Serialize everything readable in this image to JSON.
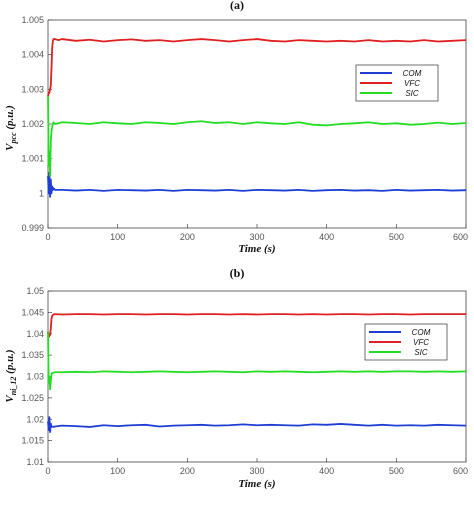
{
  "chart_data": [
    {
      "type": "line",
      "panel_label": "(a)",
      "title": "",
      "xlabel": "Time (s)",
      "ylabel_main": "V",
      "ylabel_sub": "pcc",
      "ylabel_unit": " (p.u.)",
      "xlim": [
        0,
        600
      ],
      "ylim": [
        0.999,
        1.005
      ],
      "xticks": [
        0,
        100,
        200,
        300,
        400,
        500,
        600
      ],
      "xtick_labels": [
        "0",
        "100",
        "200",
        "300",
        "400",
        "500",
        "600"
      ],
      "yticks": [
        0.999,
        1.0,
        1.001,
        1.002,
        1.003,
        1.004,
        1.005
      ],
      "ytick_labels": [
        "0.999",
        "1",
        "1.001",
        "1.002",
        "1.003",
        "1.004",
        "1.005"
      ],
      "legend_position": "right",
      "series": [
        {
          "name": "COM",
          "color": "#1f3fd4",
          "x": [
            0,
            1,
            2,
            3,
            4,
            5,
            6,
            7,
            8,
            10,
            15,
            20,
            40,
            60,
            80,
            100,
            120,
            140,
            160,
            180,
            200,
            220,
            240,
            260,
            280,
            300,
            320,
            340,
            360,
            380,
            400,
            420,
            440,
            460,
            480,
            500,
            520,
            540,
            560,
            580,
            600
          ],
          "y": [
            1.0005,
            1.0,
            1.0006,
            0.9999,
            1.0004,
            1.0,
            1.0002,
            1.0001,
            1.00015,
            1.0001,
            1.0001,
            1.0001,
            1.00008,
            1.0001,
            1.00007,
            1.0001,
            1.00009,
            1.00008,
            1.0001,
            1.00007,
            1.0001,
            1.00009,
            1.00008,
            1.0001,
            1.00007,
            1.0001,
            1.00009,
            1.00008,
            1.0001,
            1.00007,
            1.00009,
            1.0001,
            1.00008,
            1.00009,
            1.00007,
            1.0001,
            1.00008,
            1.00009,
            1.0001,
            1.00008,
            1.00009
          ]
        },
        {
          "name": "VFC",
          "color": "#e02020",
          "x": [
            0,
            1,
            2,
            3,
            4,
            5,
            6,
            7,
            8,
            10,
            15,
            20,
            40,
            60,
            80,
            100,
            120,
            140,
            160,
            180,
            200,
            220,
            240,
            260,
            280,
            300,
            320,
            340,
            360,
            380,
            400,
            420,
            440,
            460,
            480,
            500,
            520,
            540,
            560,
            580,
            600
          ],
          "y": [
            1.0028,
            1.0029,
            1.0029,
            1.003,
            1.0031,
            1.0036,
            1.0042,
            1.0044,
            1.00445,
            1.00445,
            1.00442,
            1.00445,
            1.0044,
            1.00443,
            1.00438,
            1.00442,
            1.00444,
            1.0044,
            1.00442,
            1.00438,
            1.00442,
            1.00445,
            1.00442,
            1.00438,
            1.00442,
            1.00445,
            1.0044,
            1.00438,
            1.00442,
            1.0044,
            1.00438,
            1.0044,
            1.00438,
            1.00442,
            1.00438,
            1.0044,
            1.00438,
            1.00442,
            1.00438,
            1.0044,
            1.00442
          ]
        },
        {
          "name": "SIC",
          "color": "#22dd22",
          "x": [
            0,
            1,
            2,
            3,
            4,
            5,
            6,
            7,
            8,
            10,
            15,
            20,
            40,
            60,
            80,
            100,
            120,
            140,
            160,
            180,
            200,
            220,
            240,
            260,
            280,
            300,
            320,
            340,
            360,
            380,
            400,
            420,
            440,
            460,
            480,
            500,
            520,
            540,
            560,
            580,
            600
          ],
          "y": [
            1.0028,
            1.0008,
            1.0012,
            1.0005,
            1.0015,
            1.0018,
            1.0019,
            1.002,
            1.00205,
            1.002,
            1.00202,
            1.00205,
            1.00203,
            1.002,
            1.00205,
            1.00202,
            1.002,
            1.00205,
            1.00203,
            1.002,
            1.00205,
            1.00208,
            1.00203,
            1.00205,
            1.002,
            1.00205,
            1.00202,
            1.002,
            1.00205,
            1.00198,
            1.00196,
            1.002,
            1.00202,
            1.00205,
            1.002,
            1.00202,
            1.00198,
            1.002,
            1.00204,
            1.002,
            1.00203
          ]
        }
      ]
    },
    {
      "type": "line",
      "panel_label": "(b)",
      "title": "",
      "xlabel": "Time (s)",
      "ylabel_main": "V",
      "ylabel_sub": "ni_12",
      "ylabel_unit": " (p.u.)",
      "xlim": [
        0,
        600
      ],
      "ylim": [
        1.01,
        1.05
      ],
      "xticks": [
        0,
        100,
        200,
        300,
        400,
        500,
        600
      ],
      "xtick_labels": [
        "0",
        "100",
        "200",
        "300",
        "400",
        "500",
        "600"
      ],
      "yticks": [
        1.01,
        1.015,
        1.02,
        1.025,
        1.03,
        1.035,
        1.04,
        1.045,
        1.05
      ],
      "ytick_labels": [
        "1.01",
        "1.015",
        "1.02",
        "1.025",
        "1.03",
        "1.035",
        "1.04",
        "1.045",
        "1.05"
      ],
      "legend_position": "right",
      "series": [
        {
          "name": "COM",
          "color": "#1f3fd4",
          "x": [
            0,
            1,
            2,
            3,
            4,
            5,
            6,
            8,
            10,
            20,
            40,
            60,
            80,
            100,
            120,
            140,
            160,
            180,
            200,
            220,
            240,
            260,
            280,
            300,
            320,
            340,
            360,
            380,
            400,
            420,
            440,
            460,
            480,
            500,
            520,
            540,
            560,
            580,
            600
          ],
          "y": [
            1.0195,
            1.0175,
            1.0205,
            1.017,
            1.019,
            1.0182,
            1.0183,
            1.0182,
            1.0183,
            1.0185,
            1.0184,
            1.0182,
            1.0186,
            1.0184,
            1.0186,
            1.0187,
            1.0183,
            1.0185,
            1.0186,
            1.0187,
            1.0185,
            1.0186,
            1.0188,
            1.0186,
            1.0187,
            1.0186,
            1.0185,
            1.0188,
            1.0187,
            1.0189,
            1.0187,
            1.0185,
            1.0187,
            1.0185,
            1.0186,
            1.0185,
            1.0187,
            1.0186,
            1.0185
          ]
        },
        {
          "name": "VFC",
          "color": "#e02020",
          "x": [
            0,
            1,
            2,
            3,
            4,
            5,
            6,
            8,
            10,
            20,
            40,
            60,
            80,
            100,
            120,
            140,
            160,
            180,
            200,
            220,
            240,
            260,
            280,
            300,
            320,
            340,
            360,
            380,
            400,
            420,
            440,
            460,
            480,
            500,
            520,
            540,
            560,
            580,
            600
          ],
          "y": [
            1.0405,
            1.0392,
            1.0395,
            1.0398,
            1.0412,
            1.0435,
            1.0442,
            1.0445,
            1.0446,
            1.0445,
            1.0446,
            1.0446,
            1.0445,
            1.0446,
            1.0446,
            1.0445,
            1.0446,
            1.0446,
            1.0445,
            1.0446,
            1.0446,
            1.0445,
            1.0446,
            1.0445,
            1.0446,
            1.0446,
            1.0445,
            1.0446,
            1.0445,
            1.0446,
            1.0446,
            1.0445,
            1.0446,
            1.0446,
            1.0445,
            1.0446,
            1.0446,
            1.0446,
            1.0446
          ]
        },
        {
          "name": "SIC",
          "color": "#22dd22",
          "x": [
            0,
            1,
            2,
            3,
            4,
            5,
            6,
            8,
            10,
            20,
            40,
            60,
            80,
            100,
            120,
            140,
            160,
            180,
            200,
            220,
            240,
            260,
            280,
            300,
            320,
            340,
            360,
            380,
            400,
            420,
            440,
            460,
            480,
            500,
            520,
            540,
            560,
            580,
            600
          ],
          "y": [
            1.0405,
            1.0285,
            1.03,
            1.027,
            1.029,
            1.0305,
            1.0308,
            1.0309,
            1.031,
            1.031,
            1.0311,
            1.031,
            1.0312,
            1.0311,
            1.031,
            1.0311,
            1.0312,
            1.0311,
            1.031,
            1.0311,
            1.0312,
            1.0311,
            1.031,
            1.0312,
            1.0311,
            1.0312,
            1.0311,
            1.031,
            1.0311,
            1.0312,
            1.0311,
            1.0312,
            1.0311,
            1.0312,
            1.0312,
            1.0311,
            1.0312,
            1.0311,
            1.0312
          ]
        }
      ]
    }
  ]
}
